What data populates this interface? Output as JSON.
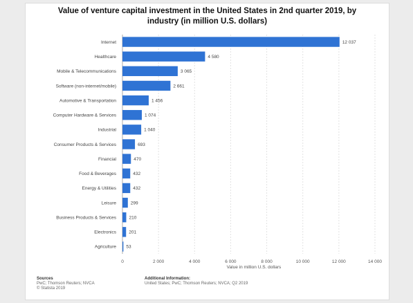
{
  "title_line1": "Value of venture capital investment in the United States in 2nd quarter 2019, by",
  "title_line2": "industry (in million U.S. dollars)",
  "footer": {
    "sources_label": "Sources",
    "sources_text": "PwC; Thomson Reuters; NVCA",
    "copyright": "© Statista 2019",
    "additional_label": "Additional Information:",
    "additional_text": "United States; PwC; Thomson Reuters; NVCA; Q2 2019"
  },
  "colors": {
    "bar": "#2f73d4",
    "grid": "#e2e2e2"
  },
  "chart_data": {
    "type": "bar",
    "orientation": "horizontal",
    "categories": [
      "Internet",
      "Healthcare",
      "Mobile & Telecommunications",
      "Software (non-internet/mobile)",
      "Automotive & Transportation",
      "Computer Hardware & Services",
      "Industrial",
      "Consumer Products & Services",
      "Financial",
      "Food & Beverages",
      "Energy & Utilities",
      "Leisure",
      "Business Products & Services",
      "Electronics",
      "Agriculture"
    ],
    "values": [
      12037,
      4580,
      3065,
      2661,
      1456,
      1074,
      1040,
      693,
      470,
      432,
      432,
      299,
      210,
      201,
      53
    ],
    "value_labels": [
      "12 037",
      "4 580",
      "3 065",
      "2 661",
      "1 456",
      "1 074",
      "1 040",
      "693",
      "470",
      "432",
      "432",
      "299",
      "210",
      "201",
      "53"
    ],
    "xlabel": "Value in million U.S. dollars",
    "xlim": [
      0,
      14000
    ],
    "xticks": [
      0,
      2000,
      4000,
      6000,
      8000,
      10000,
      12000,
      14000
    ],
    "xtick_labels": [
      "0",
      "2 000",
      "4 000",
      "6 000",
      "8 000",
      "10 000",
      "12 000",
      "14 000"
    ],
    "grid": true
  }
}
